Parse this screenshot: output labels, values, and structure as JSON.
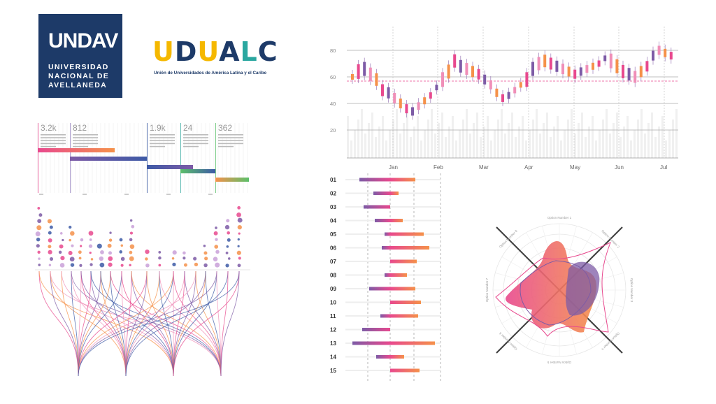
{
  "logos": {
    "undav": {
      "mark": "UNDAV",
      "line1": "UNIVERSIDAD",
      "line2": "NACIONAL DE",
      "line3": "AVELLANEDA",
      "bg": "#1d3a68"
    },
    "udualc": {
      "letters": [
        "U",
        "D",
        "U",
        "A",
        "L",
        "C"
      ],
      "letter_colors": [
        "#f5b800",
        "#1d3a68",
        "#f5b800",
        "#1d3a68",
        "#2aa7a0",
        "#1d3a68"
      ],
      "tagline": "Unión de Universidades de América Latina y el Caribe"
    }
  },
  "timeline_stats": [
    "3.2k",
    "812",
    "1.9k",
    "24",
    "362"
  ],
  "candlestick": {
    "y_ticks": [
      "80",
      "60",
      "40",
      "20"
    ],
    "x_ticks": [
      "Jan",
      "Feb",
      "Mar",
      "Apr",
      "May",
      "Jun",
      "Jul"
    ]
  },
  "range_rows": [
    "01",
    "02",
    "03",
    "04",
    "05",
    "06",
    "07",
    "08",
    "09",
    "10",
    "11",
    "12",
    "13",
    "14",
    "15"
  ],
  "radar_axes": [
    "Option Number 1",
    "Option Number 2",
    "Option Number 3",
    "Option Number 4",
    "Option Number 5",
    "Option Number 6",
    "Option Number 7",
    "Option Number 8"
  ],
  "colors": {
    "pink": "#e8498e",
    "purple": "#7d5ba6",
    "orange": "#f5914a",
    "blue": "#3d5aa6",
    "green": "#5bbf6a"
  }
}
